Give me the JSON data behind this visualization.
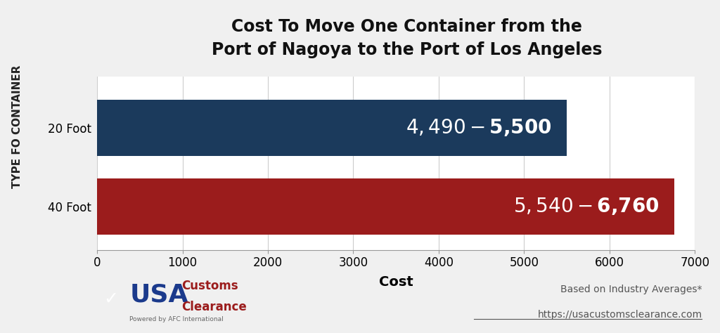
{
  "title_line1": "Cost To Move One Container from the",
  "title_line2": "Port of Nagoya to the Port of Los Angeles",
  "categories": [
    "20 Foot",
    "40 Foot"
  ],
  "values": [
    5500,
    6760
  ],
  "bar_colors": [
    "#1b3a5c",
    "#9b1c1c"
  ],
  "bar_labels": [
    "$4,490 - $5,500",
    "$5,540 - $6,760"
  ],
  "xlabel": "Cost",
  "ylabel": "TYPE FO CONTAINER",
  "xlim": [
    0,
    7000
  ],
  "xticks": [
    0,
    1000,
    2000,
    3000,
    4000,
    5000,
    6000,
    7000
  ],
  "background_color": "#f0f0f0",
  "plot_bg_color": "#ffffff",
  "title_fontsize": 17,
  "tick_fontsize": 12,
  "ylabel_fontsize": 11,
  "xlabel_fontsize": 14,
  "bar_label_fontsize": 20,
  "footer_note": "Based on Industry Averages*",
  "footer_url": "https://usacustomsclearance.com",
  "left_stripe_color": "#c8c8c8",
  "bar_height": 0.72
}
